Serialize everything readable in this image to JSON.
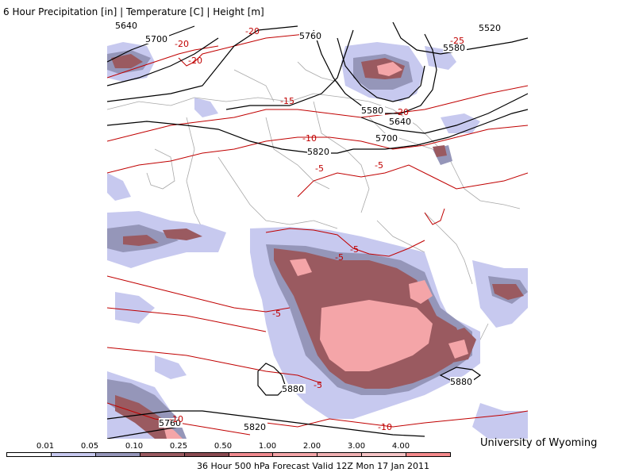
{
  "header": {
    "title": "6 Hour Precipitation [in] | Temperature [C] | Height [m]"
  },
  "credit": "University of Wyoming",
  "footer": {
    "valid_text": "36 Hour 500 hPa Forecast Valid 12Z Mon 17 Jan 2011"
  },
  "legend": {
    "labels": [
      "0.01",
      "0.05",
      "0.10",
      "0.25",
      "0.50",
      "1.00",
      "2.00",
      "3.00",
      "4.00"
    ],
    "colors": [
      "#ffffff",
      "#c7c9ef",
      "#9596b9",
      "#9a5a60",
      "#8a4a50",
      "#f08a8f",
      "#f4a5a8",
      "#f0b0b2",
      "#f6c4c6",
      "#f58a8c"
    ]
  },
  "map": {
    "colors": {
      "light_precip": "#c7c9ef",
      "mid_precip": "#9596b9",
      "heavy_precip": "#9a5a60",
      "extreme_precip": "#f4a5a8",
      "height_contour": "#000000",
      "temp_contour": "#c00000",
      "borders": "#a0a0a0"
    },
    "height_labels": [
      "5640",
      "5700",
      "5760",
      "5520",
      "5580",
      "5580",
      "5640",
      "5700",
      "5820",
      "5880",
      "5820",
      "5760",
      "5880"
    ],
    "temp_labels": [
      "-20",
      "-20",
      "-20",
      "-25",
      "-20",
      "-15",
      "-10",
      "-5",
      "-5",
      "-5",
      "-5",
      "-5",
      "-5",
      "-10",
      "-10"
    ]
  }
}
